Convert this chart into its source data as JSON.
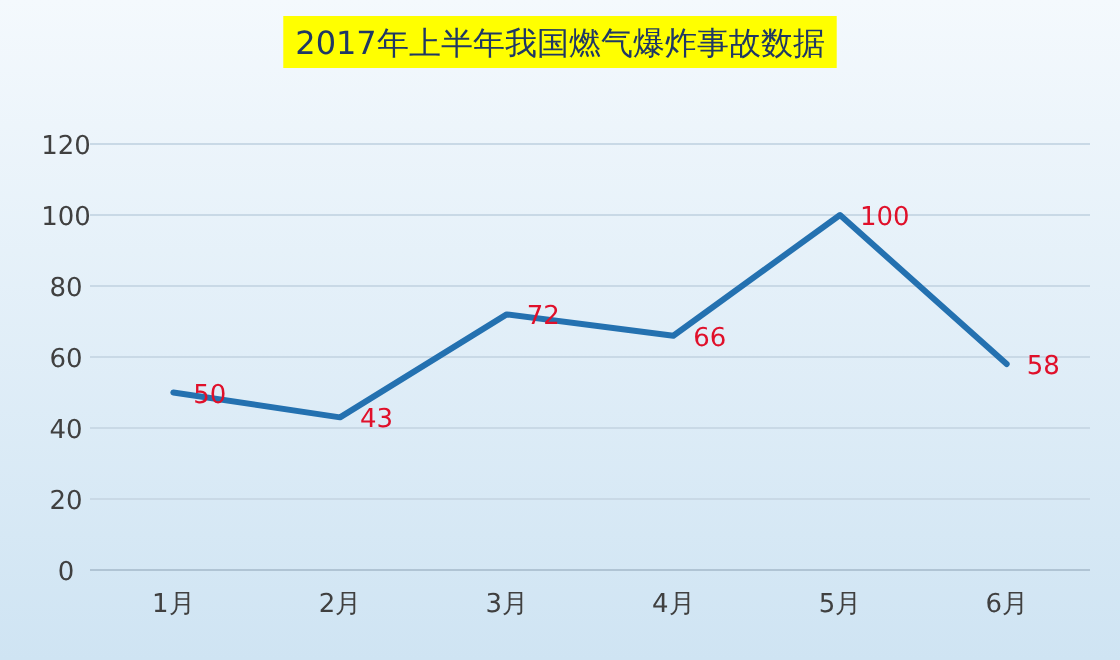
{
  "chart_data": {
    "type": "line",
    "title": "2017年上半年我国燃气爆炸事故数据",
    "categories": [
      "1月",
      "2月",
      "3月",
      "4月",
      "5月",
      "6月"
    ],
    "series": [
      {
        "color": "#2471b0",
        "values": [
          50,
          43,
          72,
          66,
          100,
          58
        ]
      }
    ],
    "ylim": [
      0,
      120
    ],
    "yticks": [
      0,
      20,
      40,
      60,
      80,
      100,
      120
    ],
    "grid": "y",
    "data_labels": true,
    "marker": "none",
    "line_style": "solid"
  }
}
